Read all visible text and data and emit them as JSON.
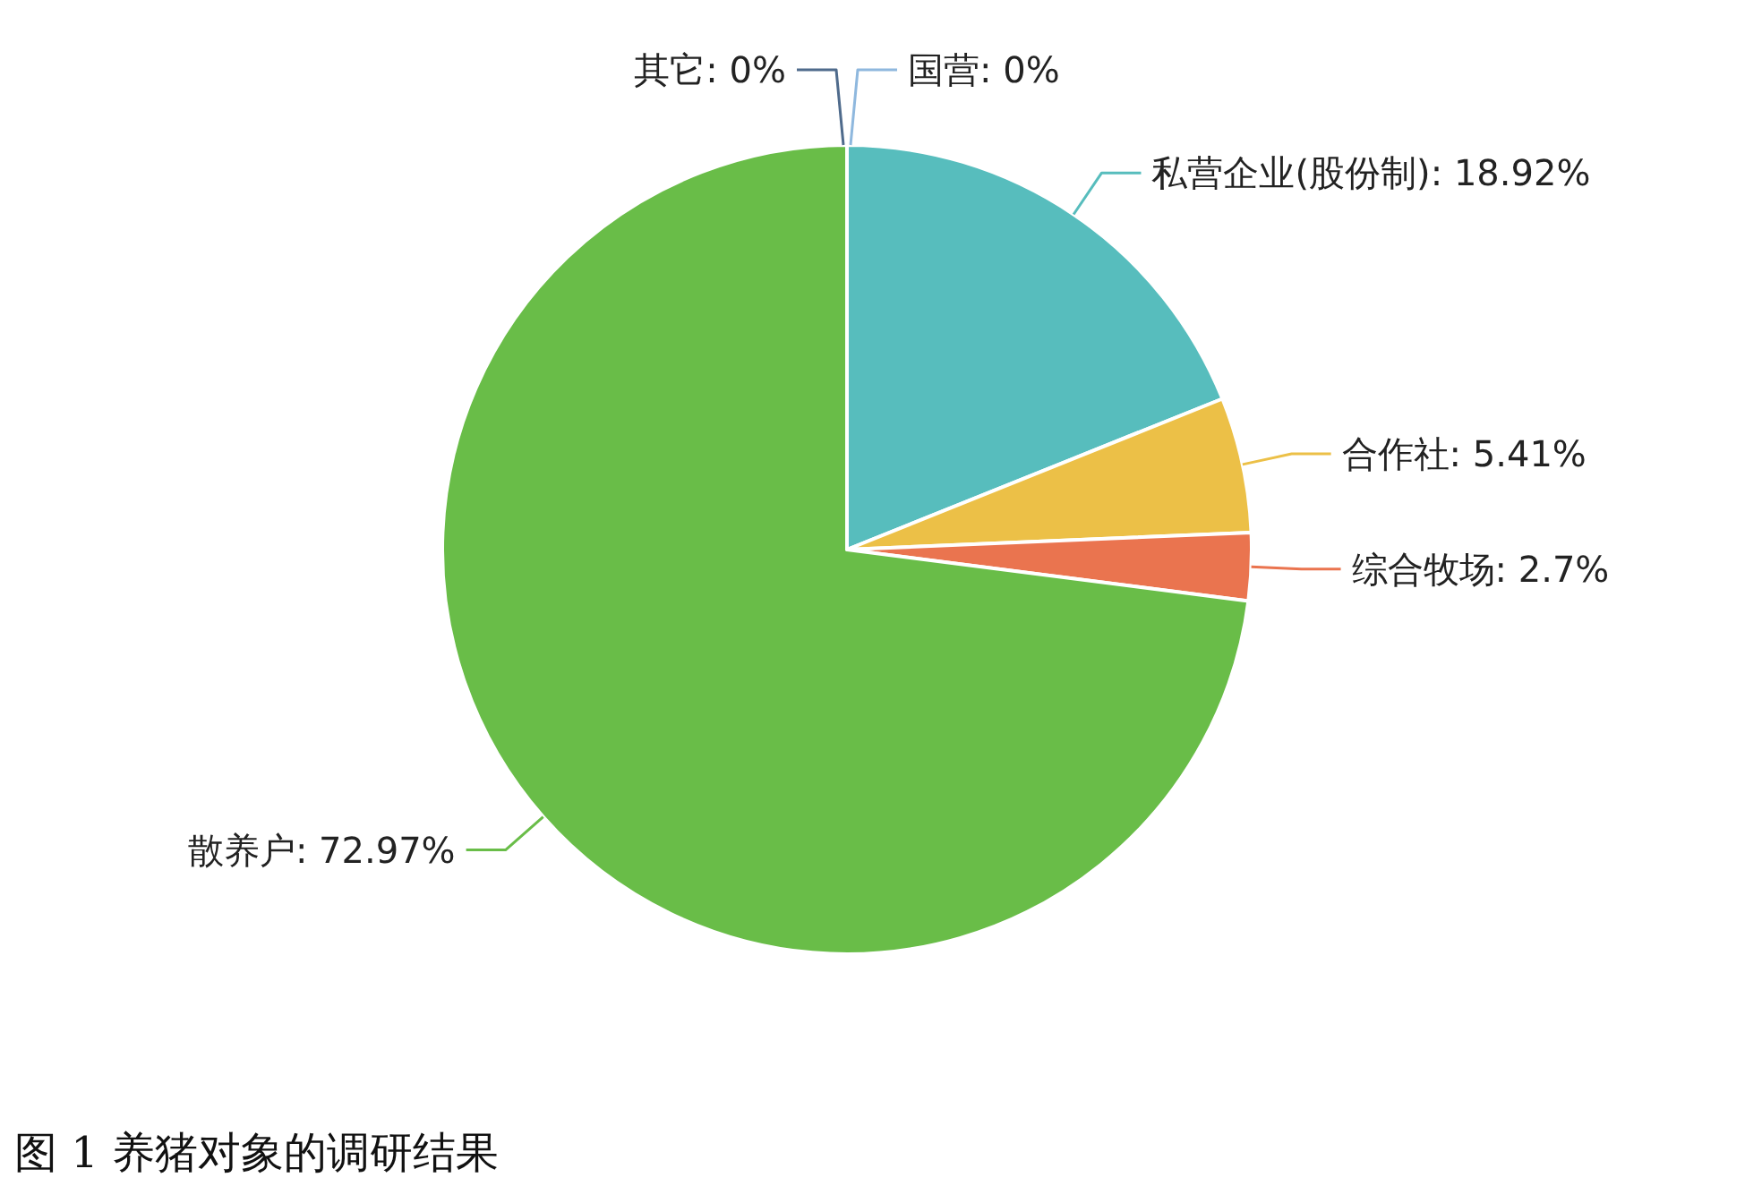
{
  "chart_data": {
    "type": "pie",
    "title": "图 1 养猪对象的调研结果",
    "categories": [
      "国营",
      "私营企业(股份制)",
      "合作社",
      "综合牧场",
      "散养户",
      "其它"
    ],
    "values": [
      0,
      18.92,
      5.41,
      2.7,
      72.97,
      0
    ],
    "colors": [
      "#8fb8de",
      "#57bdbd",
      "#ecc047",
      "#ea744f",
      "#69bd48",
      "#4f6b8c"
    ],
    "value_labels": [
      ": 0%",
      ": 18.92%",
      ": 5.41%",
      ": 2.7%",
      ": 72.97%",
      ": 0%"
    ]
  }
}
